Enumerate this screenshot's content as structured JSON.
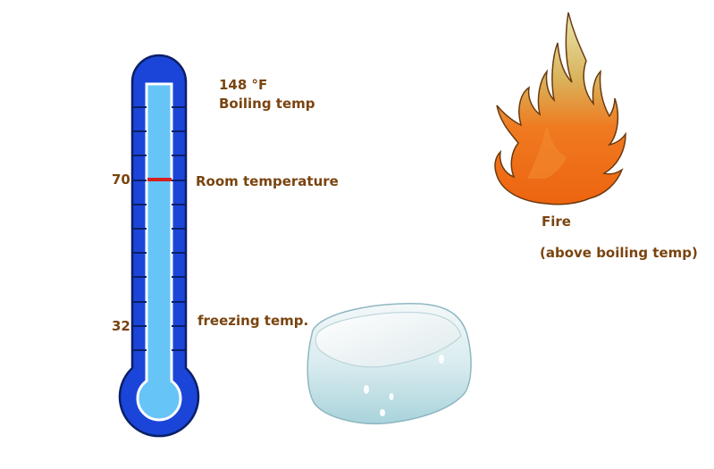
{
  "thermometer": {
    "tick_70": "70",
    "tick_32": "32"
  },
  "labels": {
    "boiling_value": "148  °F",
    "boiling": "Boiling temp",
    "room": "Room temperature",
    "freezing": "freezing temp.",
    "fire": "Fire",
    "fire_note": "(above boiling temp)"
  },
  "colors": {
    "thermometer_outer": "#1a45d8",
    "thermometer_inner": "#67c4f7",
    "marker": "#d62020",
    "label_text": "#7a4410",
    "flame_orange": "#ef6a18",
    "flame_yellow": "#cfc06a"
  }
}
